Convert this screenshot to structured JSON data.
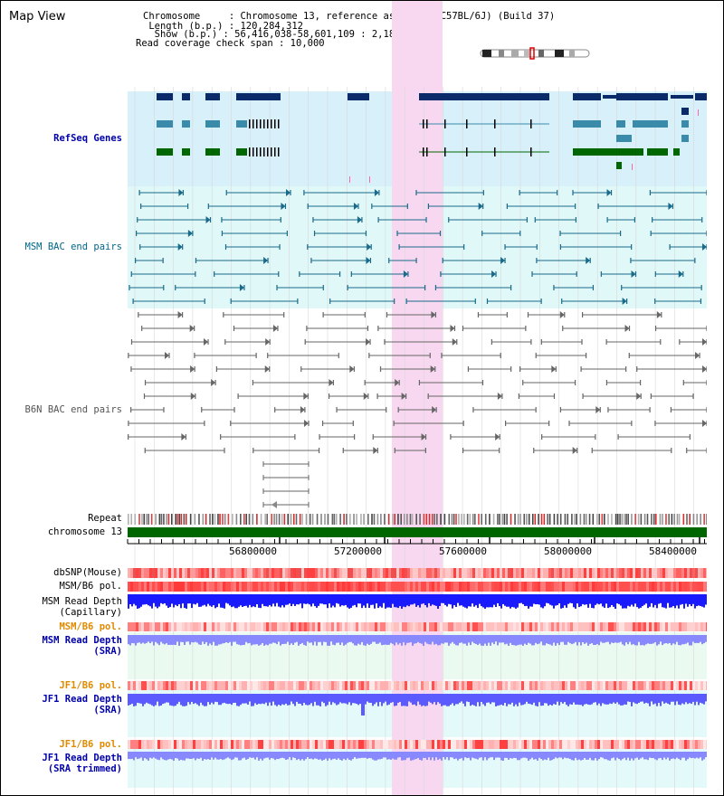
{
  "map": {
    "title": "Map View",
    "header": {
      "chromosome_label": "Chromosome     : Chromosome 13, reference assembly (C57BL/6J) (Build 37)",
      "length_label": " Length (b.p.) : 120,284,312",
      "show_label": "  Show (b.p.) : 56,416,038-58,601,109 : 2,185,072 bp",
      "coverage_label": "Read coverage check span : 10,000"
    }
  },
  "tracks": {
    "refseq": "RefSeq Genes",
    "msm_bac": "MSM BAC end pairs",
    "b6n_bac": "B6N BAC end pairs",
    "repeat": "Repeat",
    "chromosome": "chromosome 13",
    "dbsnp": "dbSNP(Mouse)",
    "msm_b6_pol_1": "MSM/B6 pol.",
    "msm_read_depth_cap_1": "MSM Read Depth",
    "msm_read_depth_cap_2": "(Capillary)",
    "msm_b6_pol_2": "MSM/B6 pol.",
    "msm_read_depth_sra_1": "MSM Read Depth",
    "msm_read_depth_sra_2": "(SRA)",
    "jf1_b6_pol_1": "JF1/B6 pol.",
    "jf1_read_depth_sra_1": "JF1 Read Depth",
    "jf1_read_depth_sra_2": "(SRA)",
    "jf1_b6_pol_2": "JF1/B6 pol.",
    "jf1_read_depth_trim_1": "JF1 Read Depth",
    "jf1_read_depth_trim_2": "(SRA trimmed)"
  },
  "axis": {
    "ticks": [
      "56800000",
      "57200000",
      "57600000",
      "58000000",
      "58400000"
    ]
  },
  "colors": {
    "highlight": "#f8d8f0",
    "refseq_bg": "#d8f0fa",
    "msm_bac_bg": "#e0f8f8",
    "gene_navy": "#0a2a6a",
    "gene_teal": "#3a8aaa",
    "gene_green": "#006600",
    "chromosome_bar": "#006600",
    "depth_blue": "#1a1aff",
    "depth_light_blue": "#8888ff"
  }
}
